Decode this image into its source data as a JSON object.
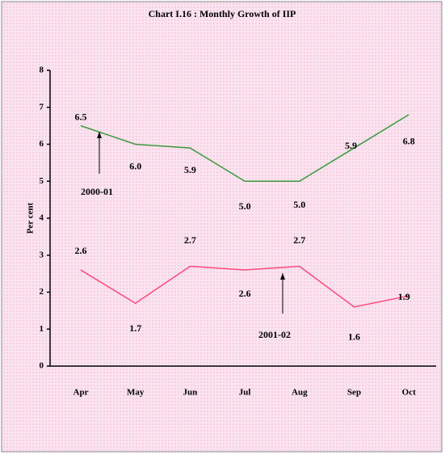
{
  "chart_data": {
    "type": "line",
    "title": "Chart I.16 : Monthly Growth of IIP",
    "y_label": "Per cent",
    "categories": [
      "Apr",
      "May",
      "Jun",
      "Jul",
      "Aug",
      "Sep",
      "Oct"
    ],
    "series": [
      {
        "name": "2000-01",
        "color": "#3c9a3c",
        "values": [
          6.5,
          6.0,
          5.9,
          5.0,
          5.0,
          5.9,
          6.8
        ],
        "value_labels": [
          "6.5",
          "6.0",
          "5.9",
          "5.0",
          "5.0",
          "5.9",
          "6.8"
        ]
      },
      {
        "name": "2001-02",
        "color": "#ff4a7a",
        "values": [
          2.6,
          1.7,
          2.7,
          2.6,
          2.7,
          1.6,
          1.9
        ],
        "value_labels": [
          "2.6",
          "1.7",
          "2.7",
          "2.6",
          "2.7",
          "1.6",
          "1.9"
        ]
      }
    ],
    "ylim": [
      0,
      8
    ],
    "yticks": [
      0,
      1,
      2,
      3,
      4,
      5,
      6,
      7,
      8
    ]
  }
}
